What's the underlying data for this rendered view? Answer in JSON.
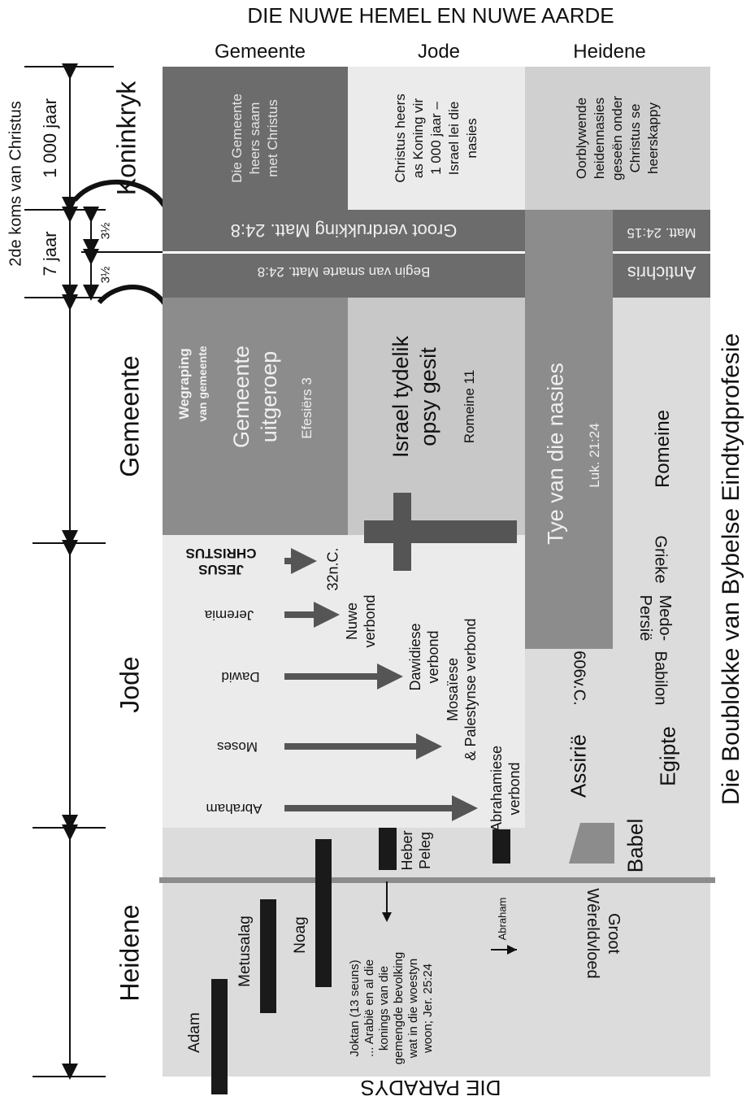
{
  "title": "DIE NUWE HEMEL EN NUWE AARDE",
  "bottom_title": "DIE PARADYS",
  "side_title": "Die Boublokke van Bybelse Eindtydprofesie",
  "columns": {
    "gemeente": "Gemeente",
    "jode": "Jode",
    "heidene": "Heidene"
  },
  "timeline": {
    "second_coming": "2de koms van Christus",
    "thousand_years": "1 000 jaar",
    "seven_years": "7 jaar",
    "half_a": "3½",
    "half_b": "3½"
  },
  "eras": {
    "koninkryk": "Koninkryk",
    "gemeente": "Gemeente",
    "jode": "Jode",
    "heidene": "Heidene"
  },
  "kingdom": {
    "gemeente": [
      "Die Gemeente",
      "heers saam",
      "met Christus"
    ],
    "jode": [
      "Christus heers",
      "as Koning vir",
      "1 000 jaar –",
      "Israel lei die",
      "nasies"
    ],
    "heidene": [
      "Oorblywende",
      "heidennasies",
      "geseën onder",
      "Christus se",
      "heerskappy"
    ]
  },
  "tribulation": {
    "groot": "Groot verdrukking Matt. 24:8",
    "begin": "Begin van smarte Matt. 24:8",
    "matt2415": "Matt. 24:15",
    "antichris": "Antichris"
  },
  "church_age": {
    "wegraping": [
      "Wegraping",
      "van gemeente"
    ],
    "uitgeroep": [
      "Gemeente",
      "uitgeroep"
    ],
    "efesiers": "Efesiërs 3",
    "israel": [
      "Israel tydelik",
      "opsy gesit"
    ],
    "romeine11": "Romeine 11",
    "tye": "Tye van die nasies",
    "luk": "Luk. 21:24"
  },
  "empires": [
    "Romeine",
    "Grieke",
    "Medo-",
    "Persië",
    "Babilon",
    "Egipte",
    "Assirië",
    "Babel"
  ],
  "dates": {
    "bc606": "606v.C.",
    "ad32": "32n.C."
  },
  "covenants": {
    "jesus": [
      "JESUS",
      "CHRISTUS"
    ],
    "jeremia": "Jeremia",
    "nuwe": [
      "Nuwe",
      "verbond"
    ],
    "dawid": "Dawid",
    "dawidiese": [
      "Dawidiese",
      "verbond"
    ],
    "moses": "Moses",
    "mosaiese": [
      "Mosaïese",
      "& Palestynse verbond"
    ],
    "abraham": "Abraham",
    "abrahamiese": [
      "Abrahamiese",
      "verbond"
    ]
  },
  "patriarchs": {
    "adam": "Adam",
    "metusalag": "Metusalag",
    "noag": "Noag",
    "heber": [
      "Heber",
      "Peleg"
    ],
    "abraham_small": "Abraham",
    "joktan": [
      "Joktan (13 seuns)",
      "... Arabië en al die",
      "konings van die",
      "gemengde bevolking",
      "wat in die woestyn",
      "woon; Jer. 25:24"
    ],
    "vloed": [
      "Groot",
      "Wêreldvloed"
    ]
  },
  "colors": {
    "dark": "#6c6c6c",
    "mid": "#8c8c8c",
    "light": "#c8c8c8",
    "pale": "#dcdcdc",
    "paler": "#ebebeb",
    "black": "#1a1a1a"
  }
}
